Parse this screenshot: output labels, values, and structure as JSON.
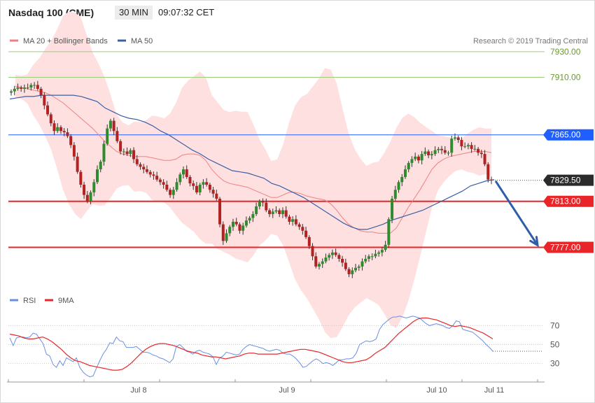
{
  "header": {
    "instrument": "Nasdaq 100 (CME)",
    "timeframe": "30 MIN",
    "time": "09:07:32 CET"
  },
  "price_legend": [
    {
      "name": "MA 20 + Bollinger Bands",
      "color": "#f08080"
    },
    {
      "name": "MA 50",
      "color": "#3a5fa8"
    }
  ],
  "rsi_legend": [
    {
      "name": "RSI",
      "color": "#6a8fe0"
    },
    {
      "name": "9MA",
      "color": "#e8262a"
    }
  ],
  "copyright": "Research © 2019 Trading Central",
  "colors": {
    "up": "#2e8b2e",
    "down": "#b22222",
    "band_fill": "#ffe0e0",
    "ma20": "#f08080",
    "ma50": "#3a5fa8",
    "support": "#e8262a",
    "resistance_green": "#9acd7a",
    "pivot_blue": "#1f5fff",
    "arrow": "#2f5ea8"
  },
  "chart_data": [
    {
      "type": "candlestick",
      "y_axis_side": "right",
      "ylim": [
        7745,
        7942
      ],
      "x_ticks": [
        "Jul 8",
        "Jul 9",
        "Jul 10",
        "Jul 11"
      ],
      "horizontal_levels": [
        {
          "value": 7930.0,
          "label": "7930.00",
          "style": "green-line"
        },
        {
          "value": 7910.0,
          "label": "7910.00",
          "style": "green-line"
        },
        {
          "value": 7865.0,
          "label": "7865.00",
          "style": "blue-line"
        },
        {
          "value": 7813.0,
          "label": "7813.00",
          "style": "red-line"
        },
        {
          "value": 7777.0,
          "label": "7777.00",
          "style": "red-line"
        }
      ],
      "last_price": {
        "value": 7829.5,
        "label": "7829.50"
      },
      "candles_close": [
        7899.0,
        7901.0,
        7902.0,
        7901.0,
        7902.0,
        7902.0,
        7904.0,
        7904.0,
        7901.0,
        7896.0,
        7888.0,
        7881.0,
        7874.0,
        7868.0,
        7871.0,
        7868.0,
        7867.0,
        7864.0,
        7857.0,
        7848.0,
        7836.0,
        7826.0,
        7818.0,
        7813.0,
        7820.0,
        7828.0,
        7838.0,
        7844.0,
        7858.0,
        7870.0,
        7876.0,
        7868.0,
        7860.0,
        7852.0,
        7852.0,
        7850.0,
        7853.0,
        7846.0,
        7842.0,
        7840.0,
        7838.0,
        7836.0,
        7834.0,
        7833.0,
        7830.0,
        7828.0,
        7826.0,
        7822.0,
        7818.0,
        7822.0,
        7828.0,
        7834.0,
        7838.0,
        7832.0,
        7827.0,
        7825.0,
        7820.0,
        7826.0,
        7828.0,
        7826.0,
        7822.0,
        7819.0,
        7815.0,
        7795.0,
        7782.0,
        7788.0,
        7793.0,
        7797.0,
        7795.0,
        7790.0,
        7794.0,
        7798.0,
        7800.0,
        7803.0,
        7809.0,
        7813.0,
        7812.0,
        7806.0,
        7803.0,
        7805.0,
        7806.0,
        7803.0,
        7806.0,
        7801.0,
        7797.0,
        7799.0,
        7795.0,
        7793.0,
        7790.0,
        7785.0,
        7778.0,
        7770.0,
        7762.0,
        7764.0,
        7766.0,
        7769.0,
        7771.0,
        7773.0,
        7771.0,
        7768.0,
        7765.0,
        7760.0,
        7756.0,
        7759.0,
        7761.0,
        7762.0,
        7766.0,
        7768.0,
        7770.0,
        7770.0,
        7772.0,
        7773.0,
        7775.0,
        7779.0,
        7799.0,
        7815.0,
        7822.0,
        7828.0,
        7832.0,
        7838.0,
        7843.0,
        7846.0,
        7848.0,
        7845.0,
        7850.0,
        7852.0,
        7849.0,
        7850.0,
        7853.0,
        7854.0,
        7853.0,
        7851.0,
        7851.0,
        7862.0,
        7863.0,
        7861.0,
        7856.0,
        7856.0,
        7857.0,
        7854.0,
        7854.0,
        7851.0,
        7850.0,
        7842.0,
        7830.0,
        7829.5
      ],
      "ma20_line": [
        7903.0,
        7902.0,
        7901.0,
        7900.0,
        7899.0,
        7898.0,
        7896.0,
        7893.0,
        7890.0,
        7886.0,
        7882.0,
        7878.0,
        7874.0,
        7870.0,
        7865.0,
        7860.0,
        7856.0,
        7852.0,
        7850.0,
        7849.0,
        7848.0,
        7848.0,
        7848.0,
        7847.0,
        7846.0,
        7845.0,
        7845.0,
        7846.0,
        7849.0,
        7850.0,
        7850.0,
        7849.0,
        7845.0,
        7838.0,
        7833.0,
        7829.0,
        7827.0,
        7826.0,
        7825.0,
        7824.0,
        7822.0,
        7820.0,
        7818.0,
        7816.0,
        7816.0,
        7818.0,
        7820.0,
        7820.0,
        7819.0,
        7817.0,
        7816.0,
        7815.0,
        7814.0,
        7811.0,
        7806.0,
        7800.0,
        7795.0,
        7792.0,
        7790.0,
        7789.0,
        7789.0,
        7788.0,
        7788.0,
        7788.0,
        7792.0,
        7800.0,
        7808.0,
        7815.0,
        7822.0,
        7830.0,
        7838.0,
        7843.0,
        7846.0,
        7848.0,
        7849.0,
        7850.0,
        7851.0,
        7852.0,
        7852.0,
        7852.0,
        7851.0
      ],
      "ma50_line": [
        7893.0,
        7894.0,
        7895.0,
        7895.0,
        7896.0,
        7896.0,
        7896.0,
        7896.0,
        7896.0,
        7895.0,
        7893.0,
        7891.0,
        7886.0,
        7883.0,
        7880.0,
        7878.0,
        7877.0,
        7875.0,
        7872.0,
        7868.0,
        7865.0,
        7861.0,
        7857.0,
        7853.0,
        7850.0,
        7846.0,
        7843.0,
        7840.0,
        7837.0,
        7836.0,
        7835.0,
        7833.0,
        7831.0,
        7827.0,
        7825.0,
        7822.0,
        7819.0,
        7816.0,
        7812.0,
        7808.0,
        7804.0,
        7800.0,
        7796.0,
        7793.0,
        7791.0,
        7791.0,
        7793.0,
        7795.0,
        7798.0,
        7800.0,
        7802.0,
        7804.0,
        7806.0,
        7809.0,
        7812.0,
        7815.0,
        7818.0,
        7821.0,
        7825.0,
        7827.0,
        7829.0,
        7830.0
      ],
      "forecast_arrow": {
        "from": 7830.0,
        "to": 7777.0
      }
    },
    {
      "type": "line",
      "name": "RSI",
      "ylim": [
        15,
        85
      ],
      "y_ticks": [
        70,
        50,
        30
      ],
      "series": [
        {
          "name": "RSI",
          "values": [
            57,
            49,
            57,
            58,
            58,
            57,
            58,
            62,
            61,
            56,
            51,
            40,
            38,
            29,
            26,
            33,
            28,
            36,
            34,
            32,
            36,
            26,
            21,
            18,
            16,
            17,
            25,
            33,
            40,
            45,
            52,
            51,
            58,
            54,
            53,
            47,
            47,
            47,
            48,
            45,
            42,
            42,
            41,
            39,
            38,
            36,
            35,
            33,
            31,
            35,
            48,
            50,
            47,
            43,
            42,
            40,
            43,
            44,
            42,
            41,
            40,
            37,
            29,
            36,
            38,
            42,
            41,
            40,
            39,
            40,
            45,
            48,
            50,
            49,
            48,
            47,
            46,
            44,
            43,
            44,
            45,
            44,
            41,
            40,
            40,
            38,
            35,
            31,
            26,
            27,
            30,
            33,
            35,
            33,
            30,
            31,
            30,
            28,
            31,
            34,
            34,
            35,
            35,
            36,
            41,
            50,
            52,
            54,
            53,
            54,
            56,
            66,
            71,
            74,
            77,
            79,
            79,
            80,
            79,
            78,
            79,
            80,
            79,
            78,
            75,
            72,
            70,
            71,
            72,
            71,
            70,
            68,
            67,
            70,
            75,
            74,
            66,
            65,
            64,
            63,
            60,
            57,
            54,
            50,
            47,
            43
          ],
          "color": "#6a8fe0"
        },
        {
          "name": "9MA",
          "values": [
            61,
            60,
            59,
            57,
            56,
            56,
            57,
            58,
            56,
            53,
            49,
            45,
            40,
            36,
            33,
            32,
            30,
            28,
            27,
            26,
            25,
            24,
            23,
            23,
            24,
            27,
            31,
            36,
            41,
            45,
            48,
            50,
            51,
            51,
            50,
            49,
            47,
            45,
            43,
            42,
            41,
            39,
            38,
            37,
            37,
            36,
            35,
            36,
            37,
            38,
            40,
            41,
            41,
            40,
            40,
            40,
            40,
            40,
            41,
            42,
            43,
            44,
            45,
            45,
            44,
            43,
            42,
            40,
            38,
            36,
            34,
            32,
            31,
            31,
            32,
            33,
            34,
            37,
            41,
            44,
            47,
            52,
            57,
            62,
            66,
            70,
            74,
            77,
            78,
            78,
            77,
            76,
            74,
            72,
            70,
            69,
            70,
            69,
            68,
            66,
            64,
            62,
            59,
            56
          ],
          "color": "#e8262a"
        }
      ]
    }
  ]
}
